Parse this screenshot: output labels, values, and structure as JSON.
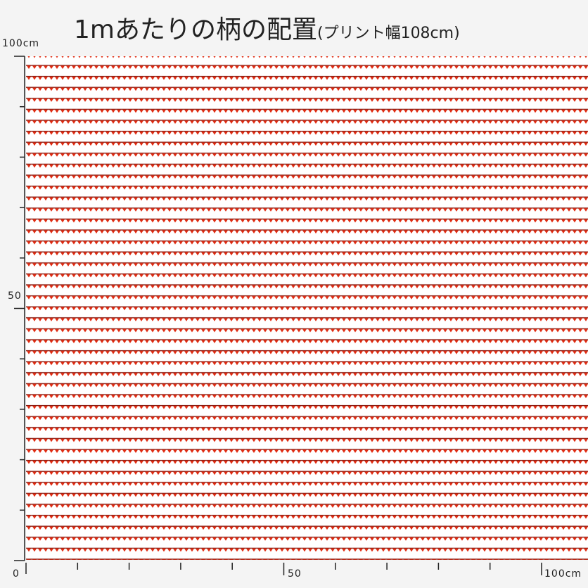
{
  "header": {
    "title": "1mあたりの柄の配置",
    "subtitle": "(プリント幅108cm)"
  },
  "ruler": {
    "left_top": "100cm",
    "left_middle": "50",
    "origin": "0",
    "bottom_middle": "50",
    "bottom_right": "100cm"
  }
}
